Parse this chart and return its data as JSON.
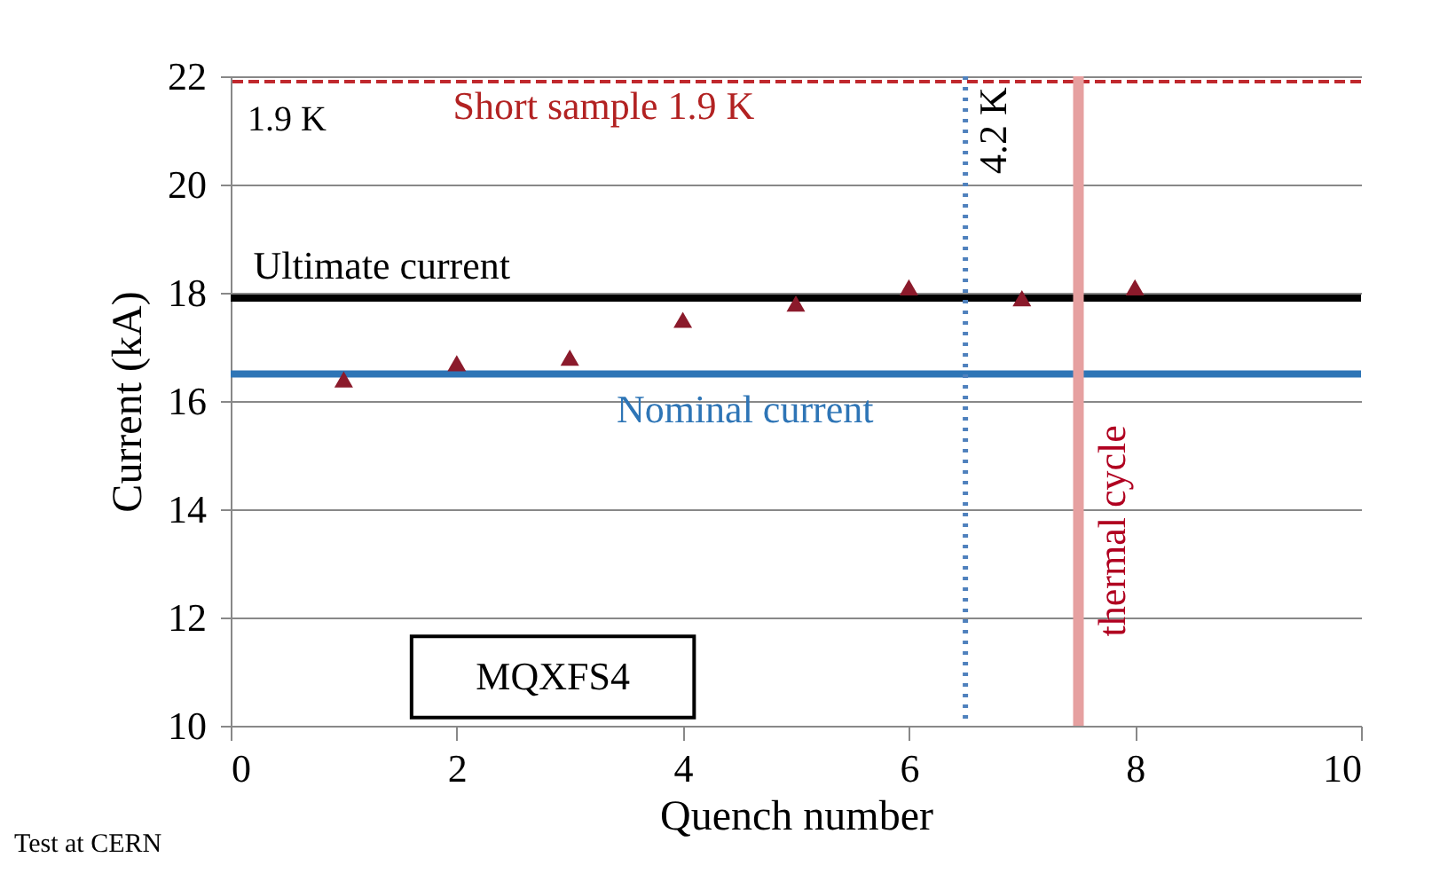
{
  "chart_data": {
    "type": "scatter",
    "xlabel": "Quench number",
    "ylabel": "Current (kA)",
    "x": [
      1,
      2,
      3,
      4,
      5,
      6,
      7,
      8
    ],
    "series": [
      {
        "color": "#8b1a2b",
        "values": [
          16.4,
          16.7,
          16.8,
          17.5,
          17.8,
          18.1,
          17.9,
          18.1
        ]
      }
    ],
    "marker": "triangle",
    "grid": "y",
    "xlim": [
      0,
      10
    ],
    "xticks": [
      0,
      2,
      4,
      6,
      8,
      10
    ],
    "ylim": [
      10,
      22
    ],
    "yticks": [
      10,
      12,
      14,
      16,
      18,
      20,
      22
    ],
    "ref_lines": [
      {
        "axis": "y",
        "value": 21.9,
        "label": "Short sample 1.9 K",
        "color": "#c0282d",
        "line_style": "dashed"
      },
      {
        "axis": "y",
        "value": 17.9,
        "label": "Ultimate  current",
        "color": "#000000",
        "line_style": "solid"
      },
      {
        "axis": "y",
        "value": 16.5,
        "label": "Nominal  current",
        "color": "#2e75b6",
        "line_style": "solid"
      },
      {
        "axis": "x",
        "value": 6.5,
        "label": "4.2 K",
        "color": "#4f81bd",
        "line_style": "dotted"
      },
      {
        "axis": "x",
        "value": 7.5,
        "label": "thermal cycle",
        "color": "#e6a0a0",
        "line_style": "solid"
      }
    ],
    "annotations": [
      "1.9 K",
      "MQXFS4",
      "Test at CERN"
    ]
  }
}
